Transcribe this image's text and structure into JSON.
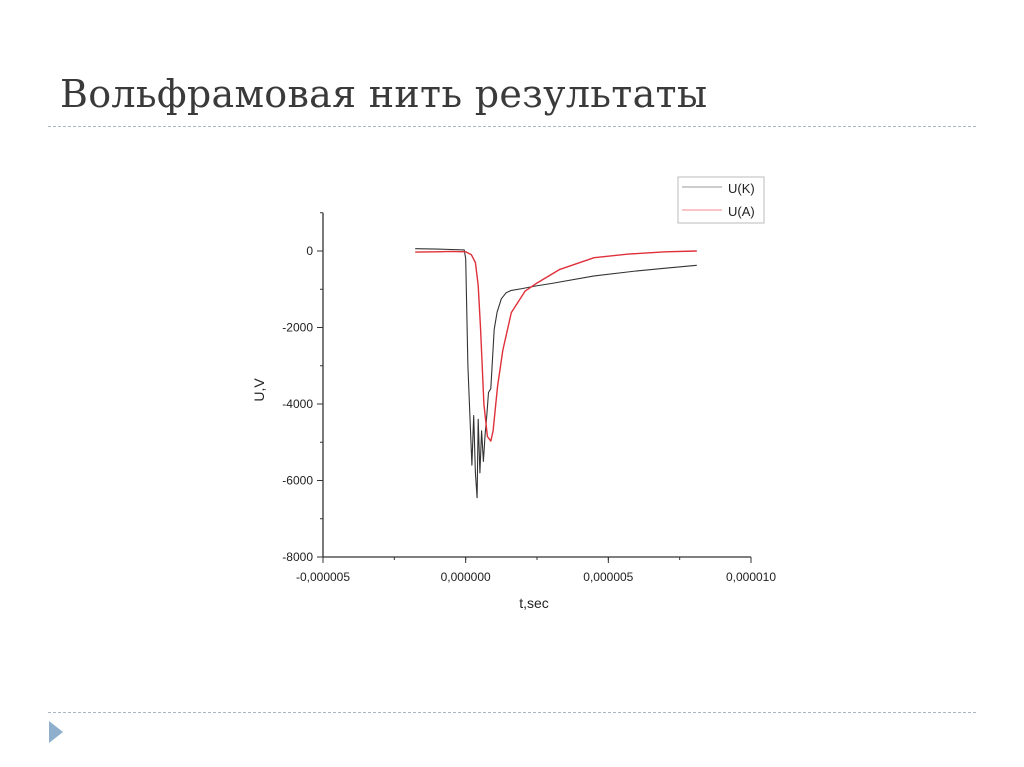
{
  "slide": {
    "title": "Вольфрамовая нить результаты",
    "accent_color": "#8fb0cc"
  },
  "chart_data": {
    "type": "line",
    "title": "",
    "xlabel": "t,sec",
    "ylabel": "U,V",
    "xlim": [
      -5e-06,
      1e-05
    ],
    "ylim": [
      -8000,
      1000
    ],
    "x_ticks": [
      -5e-06,
      0,
      5e-06,
      1e-05
    ],
    "x_tick_labels": [
      "-0,000005",
      "0,000000",
      "0,000005",
      "0,000010"
    ],
    "y_ticks": [
      0,
      -2000,
      -4000,
      -6000,
      -8000
    ],
    "y_tick_labels": [
      "0",
      "-2000",
      "-4000",
      "-6000",
      "-8000"
    ],
    "grid": false,
    "legend_position": "top-right",
    "series": [
      {
        "name": "U(K)",
        "color": "#333333",
        "x": [
          -1.77e-06,
          -1e-06,
          -5e-07,
          -5e-08,
          0.0,
          8e-08,
          1.6e-07,
          2.2e-07,
          2.8e-07,
          3.4e-07,
          4e-07,
          4.4e-07,
          5e-07,
          5.6e-07,
          6.2e-07,
          6.8e-07,
          7.4e-07,
          8e-07,
          8.8e-07,
          1e-06,
          1.1e-06,
          1.25e-06,
          1.42e-06,
          1.6e-06,
          2e-06,
          2.45e-06,
          3e-06,
          4.5e-06,
          6e-06,
          7e-06,
          8.1e-06
        ],
        "y": [
          60,
          50,
          40,
          30,
          -200,
          -3000,
          -4500,
          -5600,
          -4300,
          -5800,
          -6450,
          -4400,
          -5800,
          -4700,
          -5500,
          -4800,
          -4300,
          -3700,
          -3600,
          -2050,
          -1600,
          -1250,
          -1090,
          -1030,
          -980,
          -915,
          -850,
          -650,
          -520,
          -450,
          -375
        ]
      },
      {
        "name": "U(A)",
        "color": "#e0303a",
        "x": [
          -1.77e-06,
          -1e-06,
          -5e-07,
          0.0,
          2e-07,
          3.4e-07,
          4.4e-07,
          5.2e-07,
          6.4e-07,
          7.6e-07,
          8.8e-07,
          9.6e-07,
          1.12e-06,
          1.3e-06,
          1.6e-06,
          2.08e-06,
          2.45e-06,
          3.3e-06,
          4.5e-06,
          5.7e-06,
          7e-06,
          8.1e-06
        ],
        "y": [
          -30,
          -20,
          -10,
          -20,
          -100,
          -300,
          -900,
          -2000,
          -4000,
          -4850,
          -4970,
          -4700,
          -3530,
          -2600,
          -1610,
          -1050,
          -860,
          -480,
          -175,
          -80,
          -20,
          0
        ]
      }
    ]
  }
}
